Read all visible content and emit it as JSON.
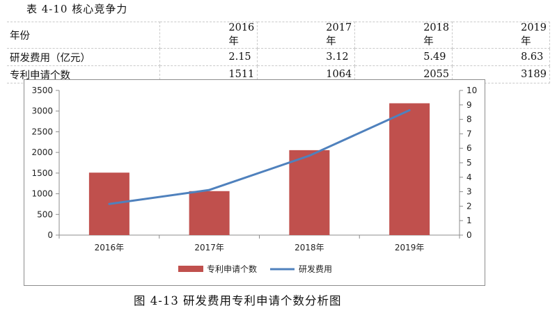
{
  "table_title": "表 4-10 核心竞争力",
  "table": {
    "rows": [
      [
        "年份",
        "2016年",
        "2017年",
        "2018年",
        "2019年"
      ],
      [
        "研发费用（亿元）",
        "2.15",
        "3.12",
        "5.49",
        "8.63"
      ],
      [
        "专利申请个数",
        "1511",
        "1064",
        "2055",
        "3189"
      ]
    ]
  },
  "caption": "图 4-13 研发费用专利申请个数分析图",
  "chart_data": {
    "type": "bar",
    "categories": [
      "2016年",
      "2017年",
      "2018年",
      "2019年"
    ],
    "series": [
      {
        "name": "专利申请个数",
        "type": "bar",
        "axis": "left",
        "color": "#c0504d",
        "values": [
          1511,
          1064,
          2055,
          3189
        ]
      },
      {
        "name": "研发费用",
        "type": "line",
        "axis": "right",
        "color": "#4f81bd",
        "values": [
          2.15,
          3.12,
          5.49,
          8.63
        ]
      }
    ],
    "y_left": {
      "min": 0,
      "max": 3500,
      "ticks": [
        "0",
        "500",
        "1000",
        "1500",
        "2000",
        "2500",
        "3000",
        "3500"
      ]
    },
    "y_right": {
      "min": 0,
      "max": 10,
      "ticks": [
        "0",
        "1",
        "2",
        "3",
        "4",
        "5",
        "6",
        "7",
        "8",
        "9",
        "10"
      ]
    },
    "legend_position": "bottom",
    "grid": false
  }
}
